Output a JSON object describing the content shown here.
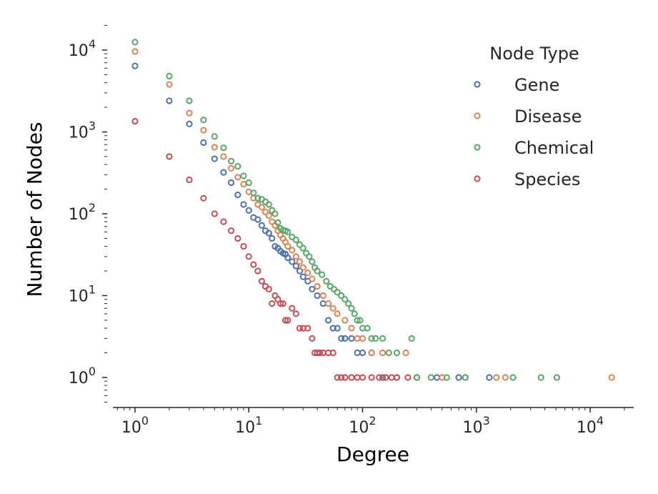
{
  "chart_data": {
    "type": "scatter",
    "title": "",
    "xlabel": "Degree",
    "ylabel": "Number of Nodes",
    "xscale": "log",
    "yscale": "log",
    "xlim": [
      0.6,
      25000
    ],
    "ylim": [
      0.55,
      22000
    ],
    "xticks": [
      {
        "value": 1,
        "base": "10",
        "exp": "0"
      },
      {
        "value": 10,
        "base": "10",
        "exp": "1"
      },
      {
        "value": 100,
        "base": "10",
        "exp": "2"
      },
      {
        "value": 1000,
        "base": "10",
        "exp": "3"
      },
      {
        "value": 10000,
        "base": "10",
        "exp": "4"
      }
    ],
    "yticks": [
      {
        "value": 1,
        "base": "10",
        "exp": "0"
      },
      {
        "value": 10,
        "base": "10",
        "exp": "1"
      },
      {
        "value": 100,
        "base": "10",
        "exp": "2"
      },
      {
        "value": 1000,
        "base": "10",
        "exp": "3"
      },
      {
        "value": 10000,
        "base": "10",
        "exp": "4"
      }
    ],
    "grid": false,
    "legend": {
      "title": "Node Type",
      "placement": "top-right",
      "entries": [
        "Gene",
        "Disease",
        "Chemical",
        "Species"
      ]
    },
    "marker": "hollow-circle",
    "series": [
      {
        "name": "Gene",
        "color": "#4c72b0",
        "points": [
          [
            1,
            6400
          ],
          [
            2,
            2400
          ],
          [
            3,
            1250
          ],
          [
            4,
            740
          ],
          [
            5,
            470
          ],
          [
            6,
            320
          ],
          [
            7,
            240
          ],
          [
            8,
            170
          ],
          [
            9,
            130
          ],
          [
            10,
            110
          ],
          [
            11,
            90
          ],
          [
            12,
            85
          ],
          [
            13,
            72
          ],
          [
            14,
            62
          ],
          [
            15,
            58
          ],
          [
            16,
            50
          ],
          [
            17,
            40
          ],
          [
            18,
            38
          ],
          [
            19,
            35
          ],
          [
            20,
            33
          ],
          [
            21,
            32
          ],
          [
            22,
            29
          ],
          [
            24,
            26
          ],
          [
            26,
            23
          ],
          [
            28,
            20
          ],
          [
            30,
            17
          ],
          [
            33,
            15
          ],
          [
            36,
            12
          ],
          [
            40,
            10
          ],
          [
            45,
            8
          ],
          [
            50,
            5
          ],
          [
            55,
            4
          ],
          [
            60,
            4
          ],
          [
            65,
            3
          ],
          [
            70,
            3
          ],
          [
            80,
            3
          ],
          [
            90,
            2
          ],
          [
            100,
            2
          ],
          [
            120,
            2
          ],
          [
            150,
            1
          ],
          [
            200,
            1
          ],
          [
            300,
            1
          ],
          [
            450,
            1
          ],
          [
            700,
            1
          ],
          [
            1300,
            1
          ]
        ]
      },
      {
        "name": "Disease",
        "color": "#dd8452",
        "points": [
          [
            1,
            9600
          ],
          [
            2,
            3800
          ],
          [
            3,
            1700
          ],
          [
            4,
            1050
          ],
          [
            5,
            650
          ],
          [
            6,
            500
          ],
          [
            7,
            360
          ],
          [
            8,
            280
          ],
          [
            9,
            230
          ],
          [
            10,
            185
          ],
          [
            11,
            155
          ],
          [
            12,
            130
          ],
          [
            13,
            120
          ],
          [
            14,
            105
          ],
          [
            15,
            95
          ],
          [
            16,
            80
          ],
          [
            17,
            72
          ],
          [
            18,
            62
          ],
          [
            19,
            55
          ],
          [
            20,
            50
          ],
          [
            21,
            45
          ],
          [
            22,
            40
          ],
          [
            24,
            36
          ],
          [
            26,
            30
          ],
          [
            28,
            26
          ],
          [
            30,
            22
          ],
          [
            33,
            19
          ],
          [
            36,
            16
          ],
          [
            40,
            13
          ],
          [
            45,
            10
          ],
          [
            50,
            8
          ],
          [
            55,
            7
          ],
          [
            60,
            6
          ],
          [
            70,
            5
          ],
          [
            80,
            4
          ],
          [
            90,
            3
          ],
          [
            100,
            3
          ],
          [
            120,
            2
          ],
          [
            150,
            2
          ],
          [
            240,
            2
          ],
          [
            300,
            1
          ],
          [
            500,
            1
          ],
          [
            800,
            1
          ],
          [
            1500,
            1
          ],
          [
            1800,
            1
          ],
          [
            15500,
            1
          ]
        ]
      },
      {
        "name": "Chemical",
        "color": "#55a868",
        "points": [
          [
            1,
            12500
          ],
          [
            2,
            4800
          ],
          [
            3,
            2400
          ],
          [
            4,
            1400
          ],
          [
            5,
            880
          ],
          [
            6,
            640
          ],
          [
            7,
            440
          ],
          [
            8,
            380
          ],
          [
            9,
            290
          ],
          [
            10,
            240
          ],
          [
            11,
            180
          ],
          [
            12,
            155
          ],
          [
            13,
            150
          ],
          [
            14,
            140
          ],
          [
            15,
            130
          ],
          [
            16,
            110
          ],
          [
            17,
            100
          ],
          [
            18,
            78
          ],
          [
            19,
            66
          ],
          [
            20,
            63
          ],
          [
            21,
            62
          ],
          [
            22,
            60
          ],
          [
            24,
            52
          ],
          [
            26,
            48
          ],
          [
            28,
            42
          ],
          [
            30,
            38
          ],
          [
            32,
            33
          ],
          [
            34,
            30
          ],
          [
            36,
            26
          ],
          [
            38,
            22
          ],
          [
            40,
            20
          ],
          [
            44,
            18
          ],
          [
            48,
            15
          ],
          [
            52,
            13
          ],
          [
            56,
            12
          ],
          [
            60,
            11
          ],
          [
            65,
            10
          ],
          [
            70,
            9
          ],
          [
            75,
            8
          ],
          [
            80,
            7
          ],
          [
            85,
            6
          ],
          [
            90,
            5
          ],
          [
            95,
            5
          ],
          [
            100,
            4
          ],
          [
            110,
            4
          ],
          [
            120,
            3
          ],
          [
            130,
            3
          ],
          [
            150,
            3
          ],
          [
            170,
            2
          ],
          [
            200,
            2
          ],
          [
            270,
            3
          ],
          [
            300,
            1
          ],
          [
            400,
            1
          ],
          [
            550,
            1
          ],
          [
            800,
            1
          ],
          [
            2100,
            1
          ],
          [
            3700,
            1
          ],
          [
            5100,
            1
          ]
        ]
      },
      {
        "name": "Species",
        "color": "#c44e52",
        "points": [
          [
            1,
            1350
          ],
          [
            2,
            500
          ],
          [
            3,
            260
          ],
          [
            4,
            155
          ],
          [
            5,
            100
          ],
          [
            6,
            80
          ],
          [
            7,
            62
          ],
          [
            8,
            50
          ],
          [
            9,
            40
          ],
          [
            10,
            30
          ],
          [
            11,
            24
          ],
          [
            12,
            20
          ],
          [
            13,
            15
          ],
          [
            14,
            13
          ],
          [
            15,
            12
          ],
          [
            16,
            8
          ],
          [
            17,
            10
          ],
          [
            18,
            9
          ],
          [
            19,
            8
          ],
          [
            20,
            8
          ],
          [
            21,
            5
          ],
          [
            22,
            5
          ],
          [
            24,
            7
          ],
          [
            26,
            6
          ],
          [
            28,
            4
          ],
          [
            30,
            4
          ],
          [
            33,
            4
          ],
          [
            36,
            3
          ],
          [
            38,
            2
          ],
          [
            40,
            2
          ],
          [
            42,
            2
          ],
          [
            45,
            2
          ],
          [
            50,
            2
          ],
          [
            55,
            2
          ],
          [
            60,
            1
          ],
          [
            65,
            1
          ],
          [
            70,
            1
          ],
          [
            80,
            1
          ],
          [
            90,
            1
          ],
          [
            100,
            1
          ],
          [
            120,
            1
          ],
          [
            140,
            1
          ],
          [
            160,
            1
          ],
          [
            180,
            1
          ],
          [
            200,
            1
          ],
          [
            250,
            1
          ]
        ]
      }
    ]
  }
}
